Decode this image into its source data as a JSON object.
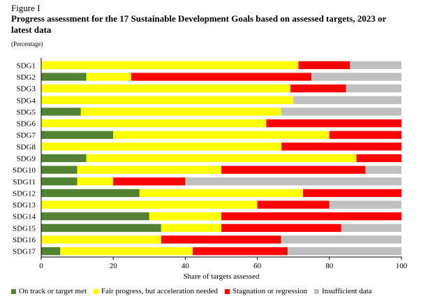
{
  "figure_label": "Figure I",
  "title": "Progress assessment for the 17 Sustainable Development Goals based on assessed targets, 2023 or latest data",
  "subtitle": "(Percentage)",
  "chart_data": {
    "type": "bar",
    "orientation": "horizontal",
    "stacked": true,
    "categories": [
      "SDG1",
      "SDG2",
      "SDG3",
      "SDG4",
      "SDG5",
      "SDG6",
      "SDG7",
      "SDG8",
      "SDG9",
      "SDG10",
      "SDG11",
      "SDG12",
      "SDG13",
      "SDG14",
      "SDG15",
      "SDG16",
      "SDG17"
    ],
    "series": [
      {
        "name": "On track or target met",
        "color": "#548235",
        "values": [
          0,
          12.5,
          0,
          0,
          11,
          0,
          20,
          0,
          12.5,
          10,
          10,
          27.3,
          0,
          30,
          33.3,
          0,
          5.3
        ]
      },
      {
        "name": "Fair progress, but acceleration needed",
        "color": "#ffff00",
        "values": [
          71.4,
          12.5,
          69.2,
          70,
          55.6,
          62.5,
          60,
          66.7,
          75,
          40,
          10,
          45.4,
          60,
          20,
          16.7,
          33.3,
          36.8
        ]
      },
      {
        "name": "Stagnation or regression",
        "color": "#ff0000",
        "values": [
          14.3,
          50,
          15.4,
          0,
          0,
          37.5,
          20,
          33.3,
          12.5,
          40,
          20,
          27.3,
          20,
          50,
          33.3,
          33.3,
          26.3
        ]
      },
      {
        "name": "Insufficient data",
        "color": "#bfbfbf",
        "values": [
          14.3,
          25,
          15.4,
          30,
          33.4,
          0,
          0,
          0,
          0,
          10,
          60,
          0,
          20,
          0,
          16.7,
          33.4,
          31.6
        ]
      }
    ],
    "xlabel": "Share of targets assessed",
    "ylabel": "",
    "xlim": [
      0,
      100
    ],
    "xticks": [
      0,
      20,
      40,
      60,
      80,
      100
    ],
    "grid": false,
    "legend_position": "bottom"
  }
}
